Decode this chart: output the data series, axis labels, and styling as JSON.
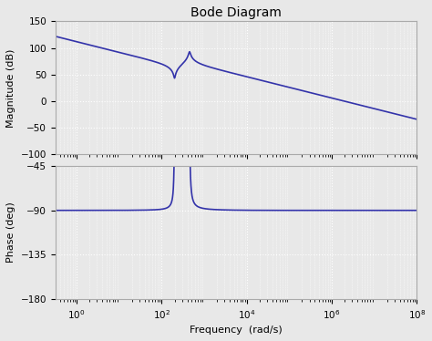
{
  "title": "Bode Diagram",
  "xlabel": "Frequency  (rad/s)",
  "ylabel_mag": "Magnitude (dB)",
  "ylabel_phase": "Phase (deg)",
  "line_color": "#3333AA",
  "line_width": 1.2,
  "mag_ylim": [
    -100,
    150
  ],
  "mag_yticks": [
    -100,
    -50,
    0,
    50,
    100,
    150
  ],
  "phase_ylim": [
    -180,
    -45
  ],
  "phase_yticks": [
    -180,
    -135,
    -90,
    -45
  ],
  "freq_log_min": -0.5,
  "freq_log_max": 8.0,
  "background_color": "#e8e8e8",
  "grid_color": "#ffffff",
  "K": 2000000.0,
  "wz": 200.0,
  "zz": 0.03,
  "wp": 450.0,
  "zp": 0.04,
  "npts": 8000,
  "figsize": [
    4.74,
    3.74
  ],
  "dpi": 100
}
